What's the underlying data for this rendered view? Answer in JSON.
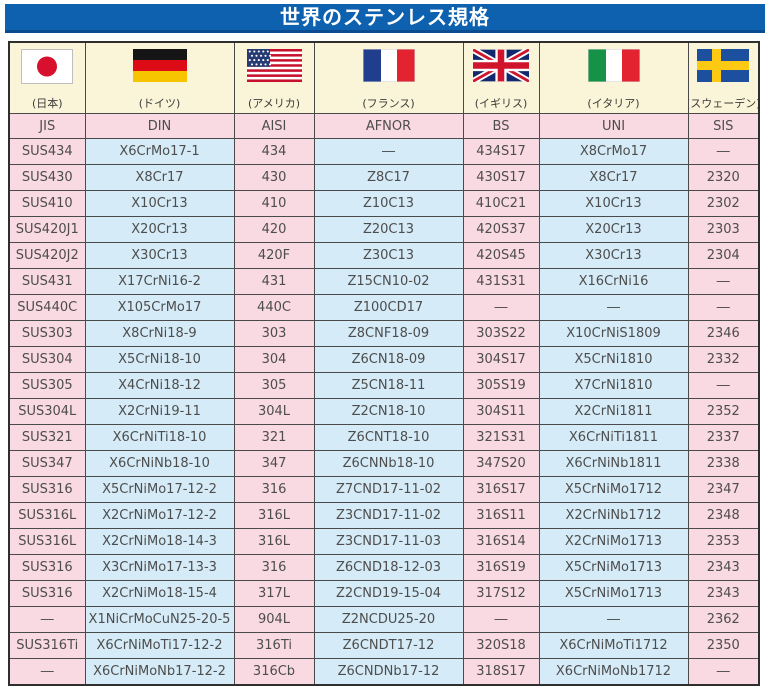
{
  "title": "世界のステンレス規格",
  "header": {
    "countries": [
      {
        "id": "japan",
        "label": "(日本)",
        "code": "JIS"
      },
      {
        "id": "germany",
        "label": "(ドイツ)",
        "code": "DIN"
      },
      {
        "id": "usa",
        "label": "(アメリカ)",
        "code": "AISI"
      },
      {
        "id": "france",
        "label": "(フランス)",
        "code": "AFNOR"
      },
      {
        "id": "uk",
        "label": "(イギリス)",
        "code": "BS"
      },
      {
        "id": "italy",
        "label": "(イタリア)",
        "code": "UNI"
      },
      {
        "id": "sweden",
        "label": "(スウェーデン)",
        "code": "SIS"
      }
    ]
  },
  "table": {
    "rows": [
      [
        "SUS434",
        "X6CrMo17-1",
        "434",
        "―",
        "434S17",
        "X8CrMo17",
        "―"
      ],
      [
        "SUS430",
        "X8Cr17",
        "430",
        "Z8C17",
        "430S17",
        "X8Cr17",
        "2320"
      ],
      [
        "SUS410",
        "X10Cr13",
        "410",
        "Z10C13",
        "410C21",
        "X10Cr13",
        "2302"
      ],
      [
        "SUS420J1",
        "X20Cr13",
        "420",
        "Z20C13",
        "420S37",
        "X20Cr13",
        "2303"
      ],
      [
        "SUS420J2",
        "X30Cr13",
        "420F",
        "Z30C13",
        "420S45",
        "X30Cr13",
        "2304"
      ],
      [
        "SUS431",
        "X17CrNi16-2",
        "431",
        "Z15CN10-02",
        "431S31",
        "X16CrNi16",
        "―"
      ],
      [
        "SUS440C",
        "X105CrMo17",
        "440C",
        "Z100CD17",
        "―",
        "―",
        "―"
      ],
      [
        "SUS303",
        "X8CrNi18-9",
        "303",
        "Z8CNF18-09",
        "303S22",
        "X10CrNiS1809",
        "2346"
      ],
      [
        "SUS304",
        "X5CrNi18-10",
        "304",
        "Z6CN18-09",
        "304S17",
        "X5CrNi1810",
        "2332"
      ],
      [
        "SUS305",
        "X4CrNi18-12",
        "305",
        "Z5CN18-11",
        "305S19",
        "X7CrNi1810",
        "―"
      ],
      [
        "SUS304L",
        "X2CrNi19-11",
        "304L",
        "Z2CN18-10",
        "304S11",
        "X2CrNi1811",
        "2352"
      ],
      [
        "SUS321",
        "X6CrNiTi18-10",
        "321",
        "Z6CNT18-10",
        "321S31",
        "X6CrNiTi1811",
        "2337"
      ],
      [
        "SUS347",
        "X6CrNiNb18-10",
        "347",
        "Z6CNNb18-10",
        "347S20",
        "X6CrNiNb1811",
        "2338"
      ],
      [
        "SUS316",
        "X5CrNiMo17-12-2",
        "316",
        "Z7CND17-11-02",
        "316S17",
        "X5CrNiMo1712",
        "2347"
      ],
      [
        "SUS316L",
        "X2CrNiMo17-12-2",
        "316L",
        "Z3CND17-11-02",
        "316S11",
        "X2CrNiNb1712",
        "2348"
      ],
      [
        "SUS316L",
        "X2CrNiMo18-14-3",
        "316L",
        "Z3CND17-11-03",
        "316S14",
        "X2CrNiMo1713",
        "2353"
      ],
      [
        "SUS316",
        "X3CrNiMo17-13-3",
        "316",
        "Z6CND18-12-03",
        "316S19",
        "X5CrNiMo1713",
        "2343"
      ],
      [
        "SUS316",
        "X2CrNiMo18-15-4",
        "317L",
        "Z2CND19-15-04",
        "317S12",
        "X5CrNiMo1713",
        "2343"
      ],
      [
        "―",
        "X1NiCrMoCuN25-20-5",
        "904L",
        "Z2NCDU25-20",
        "―",
        "―",
        "2362"
      ],
      [
        "SUS316Ti",
        "X6CrNiMoTi17-12-2",
        "316Ti",
        "Z6CNDT17-12",
        "320S18",
        "X6CrNiMoTi1712",
        "2350"
      ],
      [
        "―",
        "X6CrNiMoNb17-12-2",
        "316Cb",
        "Z6CNDNb17-12",
        "318S17",
        "X6CrNiMoNb1712",
        "―"
      ]
    ]
  },
  "colors": {
    "banner": "#0e61ae",
    "pink": "#f9dae3",
    "blue": "#d5ebf7",
    "cream": "#faf4d8"
  }
}
